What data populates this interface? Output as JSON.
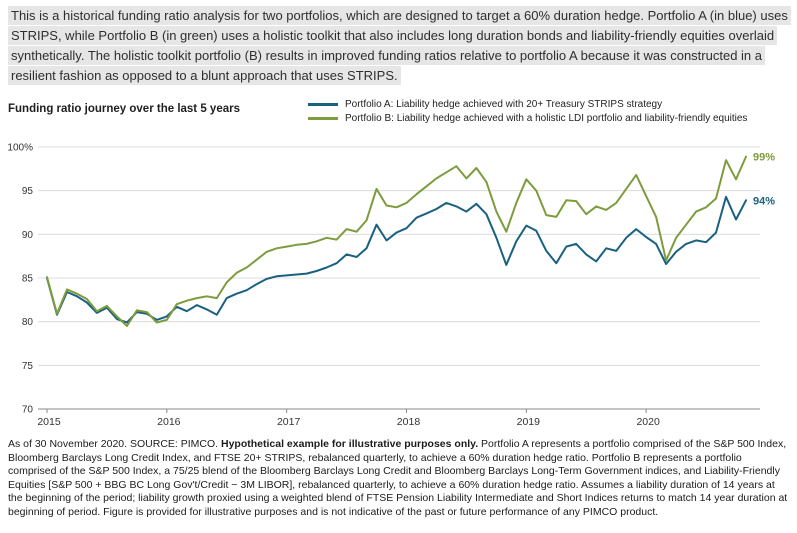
{
  "intro": {
    "text": "This is a historical funding ratio analysis for two portfolios, which are designed to target a 60% duration hedge. Portfolio A (in blue) uses STRIPS, while Portfolio B (in green) uses a holistic toolkit that also includes long duration bonds and liability-friendly equities overlaid synthetically. The holistic toolkit portfolio (B) results in improved funding ratios relative to portfolio A because it was constructed in a resilient fashion as opposed to a blunt approach that uses STRIPS."
  },
  "chart_data": {
    "type": "line",
    "title": "Funding ratio journey over the last 5 years",
    "x_start": "2015-01",
    "x_end": "2020-11",
    "x_frequency": "monthly",
    "x_tick_labels": [
      "2015",
      "2016",
      "2017",
      "2018",
      "2019",
      "2020"
    ],
    "xlabel": "",
    "ylabel": "",
    "ylim": [
      70,
      100
    ],
    "yticks": [
      70,
      75,
      80,
      85,
      90,
      95,
      100
    ],
    "ytick_labels": [
      "70",
      "75",
      "80",
      "85",
      "90",
      "95",
      "100%"
    ],
    "grid": "horizontal",
    "legend_position": "top-right",
    "series": [
      {
        "name": "Portfolio A: Liability hedge achieved with 20+ Treasury STRIPS strategy",
        "color": "#1a6181",
        "end_label": "94%",
        "values": [
          85.0,
          80.8,
          83.4,
          82.9,
          82.2,
          81.0,
          81.6,
          80.3,
          79.9,
          81.1,
          80.9,
          80.2,
          80.6,
          81.7,
          81.2,
          81.9,
          81.4,
          80.8,
          82.7,
          83.2,
          83.6,
          84.3,
          84.9,
          85.2,
          85.3,
          85.4,
          85.5,
          85.8,
          86.2,
          86.7,
          87.7,
          87.4,
          88.4,
          91.1,
          89.3,
          90.2,
          90.7,
          91.9,
          92.4,
          92.9,
          93.6,
          93.2,
          92.6,
          93.5,
          92.3,
          89.6,
          86.5,
          89.2,
          91.0,
          90.4,
          88.1,
          86.7,
          88.6,
          88.9,
          87.7,
          86.9,
          88.4,
          88.1,
          89.6,
          90.6,
          89.7,
          88.9,
          86.6,
          88.0,
          88.9,
          89.3,
          89.1,
          90.2,
          94.3,
          91.7,
          93.9
        ]
      },
      {
        "name": "Portfolio B: Liability hedge achieved with a holistic LDI portfolio and liability-friendly equities",
        "color": "#7d9c3e",
        "end_label": "99%",
        "values": [
          85.1,
          80.9,
          83.7,
          83.2,
          82.6,
          81.2,
          81.8,
          80.6,
          79.5,
          81.3,
          81.1,
          79.9,
          80.2,
          82.0,
          82.4,
          82.7,
          82.9,
          82.7,
          84.5,
          85.6,
          86.2,
          87.1,
          88.0,
          88.4,
          88.6,
          88.8,
          88.9,
          89.2,
          89.6,
          89.4,
          90.6,
          90.3,
          91.6,
          95.2,
          93.3,
          93.1,
          93.6,
          94.6,
          95.5,
          96.4,
          97.1,
          97.8,
          96.4,
          97.6,
          96.0,
          92.6,
          90.3,
          93.6,
          96.3,
          95.0,
          92.2,
          92.0,
          93.9,
          93.8,
          92.3,
          93.2,
          92.8,
          93.6,
          95.2,
          96.8,
          94.4,
          92.0,
          87.0,
          89.6,
          91.1,
          92.6,
          93.1,
          94.1,
          98.5,
          96.3,
          98.9
        ]
      }
    ]
  },
  "footer": {
    "as_of": "As of 30 November 2020. SOURCE: PIMCO. ",
    "bold_note": "Hypothetical example for illustrative purposes only.",
    "body": " Portfolio A represents a portfolio comprised of the S&P 500 Index, Bloomberg Barclays Long Credit Index, and FTSE 20+ STRIPS, rebalanced quarterly, to achieve a 60% duration hedge ratio. Portfolio B represents a portfolio comprised of the S&P 500 Index, a 75/25 blend of the Bloomberg Barclays Long Credit and Bloomberg Barclays Long-Term Government indices, and Liability-Friendly Equities [S&P 500 + BBG BC Long Gov't/Credit − 3M LIBOR], rebalanced quarterly, to achieve a 60% duration hedge ratio. Assumes a liability duration of 14 years at the beginning of the period; liability growth proxied using a weighted blend of FTSE Pension Liability Intermediate and Short Indices returns to match 14 year duration at beginning of period. Figure is provided for illustrative purposes and is not indicative of the past or future performance of any PIMCO product."
  }
}
